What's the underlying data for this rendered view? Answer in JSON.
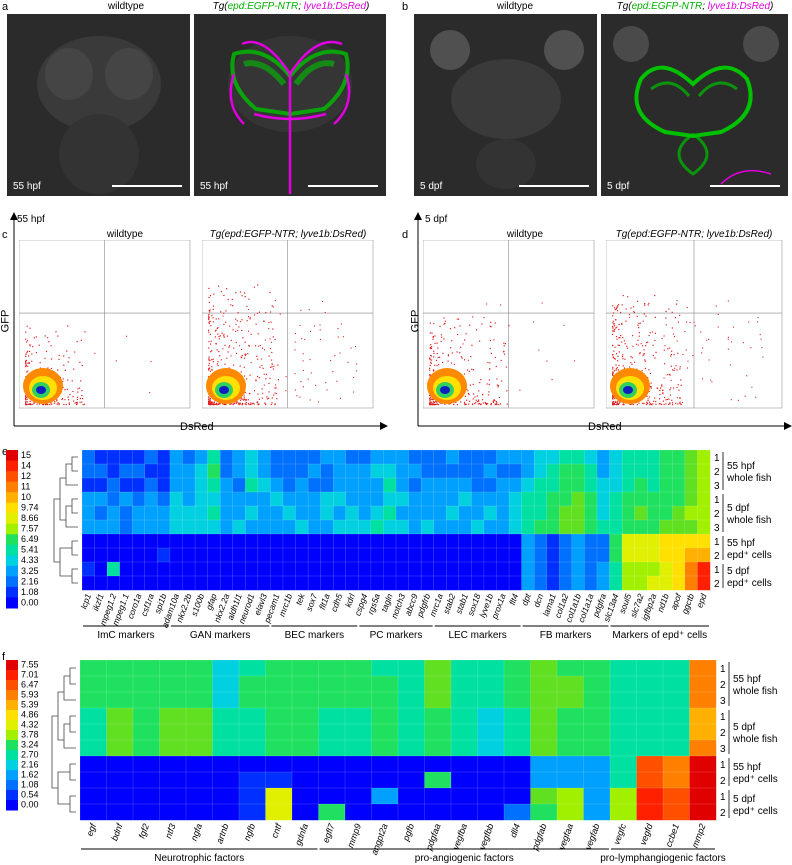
{
  "panel_a": {
    "letter": "a",
    "left_title": "wildtype",
    "right_title_prefix": "Tg(",
    "right_title_green": "epd:EGFP-NTR",
    "right_title_sep": "; ",
    "right_title_magenta": "lyve1b:DsRed",
    "right_title_suffix": ")",
    "left_stamp": "55 hpf",
    "right_stamp": "55 hpf"
  },
  "panel_b": {
    "letter": "b",
    "left_title": "wildtype",
    "right_title_prefix": "Tg(",
    "right_title_green": "epd:EGFP-NTR",
    "right_title_sep": "; ",
    "right_title_magenta": "lyve1b:DsRed",
    "right_title_suffix": ")",
    "left_stamp": "5 dpf",
    "right_stamp": "5 dpf"
  },
  "panel_c": {
    "letter": "c",
    "stage": "55 hpf",
    "left_title": "wildtype",
    "right_title": "Tg(epd:EGFP-NTR; lyve1b:DsRed)",
    "ylabel": "GFP",
    "xlabel": "DsRed"
  },
  "panel_d": {
    "letter": "d",
    "stage": "5 dpf",
    "left_title": "wildtype",
    "right_title": "Tg(epd:EGFP-NTR; lyve1b:DsRed)",
    "ylabel": "GFP",
    "xlabel": "DsRed"
  },
  "colors": {
    "green": "#00c000",
    "magenta": "#e000e0",
    "scale": [
      "#0000ff",
      "#0030ff",
      "#0070ff",
      "#00a0ff",
      "#00d0e0",
      "#00e0a0",
      "#20e060",
      "#60e020",
      "#a0f000",
      "#e0f000",
      "#ffe000",
      "#ffb000",
      "#ff8000",
      "#ff5000",
      "#ff2000",
      "#e00000"
    ]
  },
  "chart_data": [
    {
      "type": "heatmap",
      "panel": "e",
      "colorbar_ticks": [
        "15",
        "14",
        "12",
        "11",
        "10",
        "9.74",
        "8.66",
        "7.57",
        "6.49",
        "5.41",
        "4.33",
        "3.25",
        "2.16",
        "1.08",
        "0.00"
      ],
      "columns": [
        "lcp1",
        "ikzf1",
        "mpeg1.2",
        "mpeg1.1",
        "coro1a",
        "csf1ra",
        "spi1b",
        "adam10a",
        "nkx2.2b",
        "s100b",
        "gfap",
        "nkx2.2a",
        "aldh1l1",
        "neurod1",
        "elavl3",
        "pecam1",
        "mrc1b",
        "tek",
        "sox7",
        "flt1a",
        "cdh5",
        "kdrl",
        "cspg4",
        "rgs5a",
        "tagln",
        "notch3",
        "abcc9",
        "pdgfrb",
        "mrc1a",
        "stab2",
        "stab1",
        "sox18",
        "lyve1b",
        "prox1a",
        "flt4",
        "dpt",
        "dcn",
        "lama1",
        "col1a2",
        "col1a1b",
        "col1a1a",
        "pdgfra",
        "slc13a4",
        "soul5",
        "slc7a2",
        "igfbp2a",
        "nd1b",
        "apof",
        "ggctb",
        "epd"
      ],
      "groups": [
        {
          "label": "ImC markers"
        },
        {
          "label": "GAN markers"
        },
        {
          "label": "BEC markers"
        },
        {
          "label": "PC markers"
        },
        {
          "label": "LEC markers"
        },
        {
          "label": "FB markers"
        },
        {
          "label": "Markers of epd⁺ cells"
        }
      ],
      "row_labels": [
        "1",
        "2",
        "3",
        "1",
        "2",
        "3",
        "1",
        "2",
        "1",
        "2"
      ],
      "row_groups": [
        {
          "lines": [
            "55 hpf",
            "whole fish"
          ]
        },
        {
          "lines": [
            "5 dpf",
            "whole fish"
          ]
        },
        {
          "lines": [
            "55 hpf",
            "epd⁺ cells"
          ]
        },
        {
          "lines": [
            "5 dpf",
            "epd⁺ cells"
          ]
        }
      ],
      "values": [
        [
          2,
          1,
          1,
          1,
          1,
          2,
          1,
          3,
          2,
          3,
          5,
          2,
          3,
          4,
          3,
          2,
          2,
          2,
          2,
          3,
          3,
          2,
          2,
          3,
          3,
          3,
          2,
          2,
          2,
          3,
          2,
          2,
          2,
          3,
          3,
          3,
          4,
          4,
          5,
          5,
          4,
          3,
          4,
          5,
          5,
          5,
          6,
          6,
          7,
          8
        ],
        [
          2,
          2,
          1,
          2,
          2,
          1,
          1,
          3,
          3,
          4,
          6,
          2,
          3,
          4,
          3,
          2,
          2,
          2,
          3,
          2,
          3,
          3,
          3,
          4,
          4,
          3,
          3,
          2,
          2,
          2,
          2,
          2,
          3,
          2,
          2,
          3,
          4,
          5,
          6,
          6,
          5,
          3,
          4,
          5,
          5,
          5,
          6,
          6,
          7,
          8
        ],
        [
          1,
          1,
          2,
          1,
          1,
          2,
          1,
          3,
          3,
          4,
          5,
          3,
          2,
          5,
          4,
          3,
          2,
          3,
          2,
          2,
          3,
          3,
          3,
          3,
          5,
          3,
          2,
          3,
          3,
          3,
          3,
          2,
          2,
          3,
          3,
          4,
          5,
          5,
          6,
          6,
          5,
          4,
          4,
          5,
          6,
          5,
          6,
          6,
          7,
          8
        ],
        [
          3,
          3,
          2,
          3,
          2,
          3,
          2,
          4,
          3,
          4,
          4,
          3,
          3,
          3,
          3,
          4,
          3,
          3,
          3,
          4,
          4,
          3,
          3,
          3,
          4,
          4,
          3,
          3,
          3,
          3,
          4,
          3,
          3,
          3,
          4,
          5,
          5,
          6,
          6,
          7,
          6,
          4,
          5,
          6,
          6,
          6,
          6,
          6,
          7,
          8
        ],
        [
          3,
          2,
          3,
          2,
          3,
          3,
          3,
          4,
          4,
          4,
          5,
          3,
          3,
          4,
          3,
          3,
          4,
          3,
          3,
          4,
          3,
          4,
          3,
          4,
          5,
          3,
          3,
          3,
          3,
          4,
          3,
          3,
          4,
          3,
          4,
          5,
          5,
          6,
          7,
          7,
          6,
          4,
          5,
          6,
          7,
          6,
          6,
          7,
          8,
          8
        ],
        [
          3,
          3,
          3,
          2,
          3,
          3,
          3,
          4,
          4,
          4,
          4,
          3,
          4,
          3,
          3,
          3,
          3,
          4,
          3,
          3,
          4,
          4,
          4,
          5,
          4,
          4,
          3,
          4,
          3,
          3,
          3,
          4,
          3,
          3,
          4,
          5,
          6,
          6,
          7,
          7,
          6,
          5,
          5,
          6,
          6,
          6,
          7,
          7,
          7,
          8
        ],
        [
          0,
          0,
          0,
          0,
          0,
          0,
          0,
          0,
          0,
          0,
          0,
          0,
          0,
          0,
          0,
          0,
          0,
          0,
          0,
          0,
          0,
          0,
          0,
          0,
          0,
          0,
          0,
          0,
          0,
          0,
          0,
          0,
          0,
          0,
          0,
          3,
          2,
          1,
          2,
          3,
          2,
          2,
          6,
          9,
          9,
          9,
          10,
          10,
          10,
          10
        ],
        [
          0,
          0,
          0,
          0,
          0,
          0,
          1,
          0,
          0,
          0,
          0,
          0,
          0,
          0,
          0,
          0,
          0,
          0,
          0,
          0,
          0,
          0,
          0,
          0,
          0,
          0,
          0,
          0,
          0,
          0,
          0,
          0,
          0,
          0,
          0,
          3,
          2,
          1,
          2,
          3,
          2,
          2,
          6,
          9,
          9,
          9,
          10,
          10,
          11,
          11
        ],
        [
          1,
          0,
          5,
          0,
          0,
          0,
          0,
          0,
          0,
          0,
          0,
          0,
          0,
          0,
          0,
          0,
          0,
          0,
          0,
          0,
          0,
          0,
          0,
          0,
          0,
          0,
          0,
          0,
          0,
          0,
          0,
          0,
          0,
          0,
          0,
          3,
          2,
          1,
          2,
          3,
          2,
          3,
          5,
          8,
          8,
          8,
          9,
          10,
          12,
          14
        ],
        [
          0,
          0,
          0,
          0,
          0,
          0,
          0,
          0,
          0,
          0,
          0,
          0,
          0,
          0,
          0,
          0,
          0,
          0,
          0,
          0,
          0,
          0,
          0,
          0,
          0,
          0,
          0,
          0,
          0,
          0,
          0,
          0,
          0,
          0,
          0,
          3,
          2,
          1,
          2,
          3,
          2,
          3,
          5,
          8,
          8,
          9,
          9,
          10,
          12,
          14
        ]
      ]
    },
    {
      "type": "heatmap",
      "panel": "f",
      "colorbar_ticks": [
        "7.55",
        "7.01",
        "6.47",
        "5.93",
        "5.39",
        "4.86",
        "4.32",
        "3.78",
        "3.24",
        "2.70",
        "2.16",
        "1.62",
        "1.08",
        "0.54",
        "0.00"
      ],
      "columns": [
        "egf",
        "bdnf",
        "fgf2",
        "ntf3",
        "ngfa",
        "artnb",
        "ngfb",
        "cntf",
        "gdnfa",
        "egfl7",
        "mmp9",
        "angpt2a",
        "pgfb",
        "pdgfaa",
        "vegfba",
        "vegfbb",
        "dll4",
        "pdgfab",
        "vegfaa",
        "vegfab",
        "vegfc",
        "vegfd",
        "ccbe1",
        "mmp2"
      ],
      "groups": [
        {
          "label": "Neurotrophic factors"
        },
        {
          "label": "pro-angiogenic factors"
        },
        {
          "label": "pro-lymphangiogenic factors"
        }
      ],
      "row_labels": [
        "1",
        "2",
        "3",
        "1",
        "2",
        "3",
        "1",
        "2",
        "1",
        "2"
      ],
      "row_groups": [
        {
          "lines": [
            "55 hpf",
            "whole fish"
          ]
        },
        {
          "lines": [
            "5 dpf",
            "whole fish"
          ]
        },
        {
          "lines": [
            "55 hpf",
            "epd⁺ cells"
          ]
        },
        {
          "lines": [
            "5 dpf",
            "epd⁺ cells"
          ]
        }
      ],
      "values": [
        [
          3.0,
          3.0,
          2.8,
          3.0,
          2.8,
          2.0,
          2.6,
          3.1,
          3.2,
          2.9,
          2.8,
          2.7,
          2.5,
          3.6,
          2.7,
          2.4,
          3.1,
          3.5,
          3.2,
          3.0,
          2.6,
          2.5,
          2.4,
          6.0
        ],
        [
          3.0,
          3.0,
          2.9,
          3.1,
          2.8,
          2.2,
          2.8,
          3.0,
          3.1,
          2.8,
          2.8,
          2.8,
          2.5,
          3.6,
          2.6,
          2.3,
          3.0,
          3.5,
          3.3,
          3.0,
          2.6,
          2.5,
          2.5,
          6.1
        ],
        [
          3.0,
          3.1,
          2.9,
          3.0,
          2.9,
          2.1,
          2.9,
          3.0,
          3.1,
          2.8,
          2.8,
          2.8,
          2.5,
          3.6,
          2.6,
          2.3,
          3.1,
          3.6,
          3.3,
          3.0,
          2.6,
          2.4,
          2.5,
          6.0
        ],
        [
          2.6,
          3.4,
          3.0,
          3.4,
          3.3,
          2.4,
          2.6,
          3.2,
          3.2,
          2.6,
          2.4,
          2.8,
          2.4,
          2.9,
          2.4,
          2.1,
          2.6,
          3.6,
          3.1,
          2.8,
          2.3,
          2.4,
          2.5,
          5.7
        ],
        [
          2.6,
          3.5,
          3.1,
          3.5,
          3.3,
          2.4,
          2.6,
          3.2,
          3.2,
          2.6,
          2.4,
          2.8,
          2.4,
          2.9,
          2.4,
          2.1,
          2.6,
          3.6,
          3.1,
          2.8,
          2.3,
          2.4,
          2.5,
          5.7
        ],
        [
          2.6,
          3.4,
          3.0,
          3.4,
          3.3,
          2.4,
          2.6,
          3.2,
          3.2,
          2.6,
          2.4,
          2.8,
          2.4,
          2.9,
          2.4,
          2.1,
          2.6,
          3.6,
          3.1,
          2.8,
          2.3,
          2.4,
          2.5,
          5.8
        ],
        [
          0,
          0,
          0,
          0,
          0,
          0,
          0,
          0,
          0,
          0,
          0,
          0,
          0,
          0,
          0,
          0,
          0,
          1.6,
          1.6,
          1.4,
          2.6,
          6.6,
          6.0,
          7.3
        ],
        [
          0,
          0,
          0,
          0,
          0,
          0,
          0.5,
          0.4,
          0,
          0,
          0,
          0,
          0,
          2.8,
          0,
          0,
          0,
          1.6,
          1.7,
          1.4,
          2.6,
          6.6,
          6.0,
          7.3
        ],
        [
          0,
          0,
          0,
          0,
          0,
          0,
          0.6,
          4.6,
          0,
          0,
          0,
          1.3,
          0,
          0,
          0,
          0,
          0,
          3.4,
          4.1,
          1.6,
          4.0,
          6.8,
          6.4,
          7.5
        ],
        [
          0,
          0,
          0,
          0,
          0,
          0,
          0.4,
          4.5,
          0,
          2.8,
          0,
          0,
          0,
          0,
          0,
          0,
          1.1,
          3.2,
          4.0,
          1.4,
          4.0,
          6.8,
          6.4,
          7.5
        ]
      ]
    }
  ]
}
